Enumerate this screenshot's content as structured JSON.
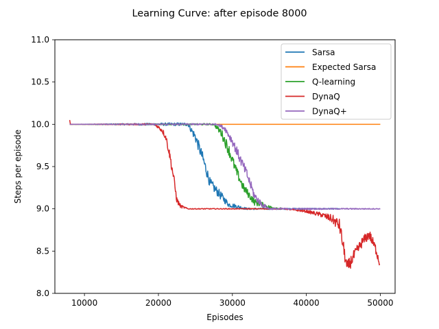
{
  "chart_data": {
    "type": "line",
    "title": "Learning Curve: after episode 8000",
    "xlabel": "Episodes",
    "ylabel": "Steps per episode",
    "xlim": [
      6000,
      52000
    ],
    "ylim": [
      8.0,
      11.0
    ],
    "xticks": [
      10000,
      20000,
      30000,
      40000,
      50000
    ],
    "xtick_labels": [
      "10000",
      "20000",
      "30000",
      "40000",
      "50000"
    ],
    "yticks": [
      8.0,
      8.5,
      9.0,
      9.5,
      10.0,
      10.5,
      11.0
    ],
    "ytick_labels": [
      "8.0",
      "8.5",
      "9.0",
      "9.5",
      "10.0",
      "10.5",
      "11.0"
    ],
    "grid": false,
    "legend_position": "top-right",
    "series": [
      {
        "name": "Sarsa",
        "color": "#1f77b4",
        "x": [
          8000,
          24000,
          25000,
          26000,
          27000,
          28500,
          29500,
          31000,
          32000,
          44500
        ],
        "y": [
          10.0,
          10.0,
          9.85,
          9.6,
          9.3,
          9.15,
          9.05,
          9.02,
          9.0,
          9.0
        ],
        "noise": [
          0,
          0.02,
          0.06,
          0.07,
          0.06,
          0.05,
          0.03,
          0.02,
          0.01,
          0.005
        ]
      },
      {
        "name": "Expected Sarsa",
        "color": "#ff7f0e",
        "x": [
          8000,
          50000
        ],
        "y": [
          10.0,
          10.0
        ],
        "noise": [
          0,
          0
        ]
      },
      {
        "name": "Q-learning",
        "color": "#2ca02c",
        "x": [
          8000,
          27500,
          28500,
          29500,
          30500,
          31500,
          33000,
          35000,
          36700
        ],
        "y": [
          10.0,
          10.0,
          9.9,
          9.7,
          9.45,
          9.25,
          9.08,
          9.02,
          9.0
        ],
        "noise": [
          0,
          0.01,
          0.05,
          0.07,
          0.06,
          0.05,
          0.04,
          0.02,
          0.01
        ]
      },
      {
        "name": "DynaQ",
        "color": "#d62728",
        "x": [
          8000,
          8100,
          19500,
          20500,
          21000,
          21500,
          22000,
          22500,
          23000,
          24000,
          37000,
          40000,
          42000,
          43500,
          44500,
          45500,
          46500,
          47500,
          48500,
          49500,
          49900
        ],
        "y": [
          10.05,
          10.0,
          10.0,
          9.93,
          9.85,
          9.65,
          9.4,
          9.1,
          9.03,
          9.0,
          9.0,
          8.97,
          8.93,
          8.88,
          8.8,
          8.3,
          8.45,
          8.6,
          8.7,
          8.5,
          8.35
        ],
        "noise": [
          0,
          0,
          0.01,
          0.03,
          0.04,
          0.05,
          0.06,
          0.04,
          0.02,
          0.005,
          0.005,
          0.015,
          0.03,
          0.05,
          0.08,
          0.08,
          0.07,
          0.06,
          0.06,
          0.06,
          0.05
        ]
      },
      {
        "name": "DynaQ+",
        "color": "#9467bd",
        "x": [
          8000,
          28000,
          29000,
          30000,
          31000,
          32000,
          33000,
          34000,
          35000,
          50000
        ],
        "y": [
          10.0,
          10.0,
          9.95,
          9.8,
          9.6,
          9.4,
          9.15,
          9.05,
          9.0,
          9.0
        ],
        "noise": [
          0,
          0.01,
          0.03,
          0.05,
          0.06,
          0.06,
          0.05,
          0.03,
          0.01,
          0.005
        ]
      }
    ]
  }
}
